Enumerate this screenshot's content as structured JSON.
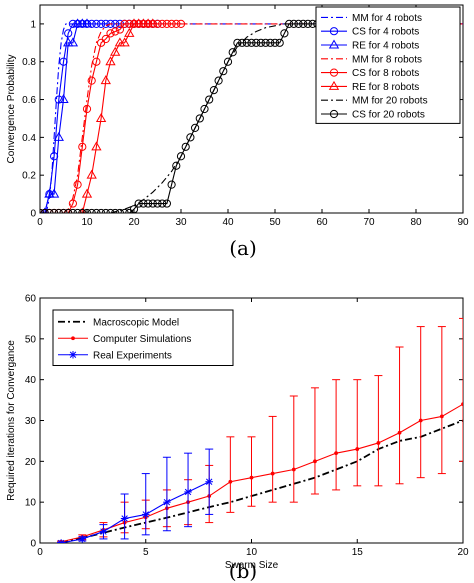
{
  "chart_data": [
    {
      "type": "line",
      "caption": "(a)",
      "xlabel": "",
      "ylabel": "Convergence Probability",
      "xlim": [
        0,
        90
      ],
      "ylim": [
        0,
        1.1
      ],
      "xticks": [
        0,
        10,
        20,
        30,
        40,
        50,
        60,
        70,
        80,
        90
      ],
      "yticks": [
        0,
        0.2,
        0.4,
        0.6,
        0.8,
        1
      ],
      "xtick_labels": [
        "0",
        "10",
        "20",
        "30",
        "40",
        "50",
        "60",
        "70",
        "80",
        "90"
      ],
      "ytick_labels": [
        "0",
        "0.2",
        "0.4",
        "0.6",
        "0.8",
        "1"
      ],
      "legend": "top-right",
      "series": [
        {
          "name": "MM for 4 robots",
          "color": "#0000ff",
          "dash": "dashdot",
          "marker": "none",
          "x": [
            1,
            1.5,
            2,
            2.5,
            3,
            3.5,
            4,
            4.5,
            5,
            5.5,
            6,
            7,
            8,
            90
          ],
          "y": [
            0,
            0.02,
            0.08,
            0.2,
            0.4,
            0.6,
            0.78,
            0.9,
            0.97,
            1,
            1,
            1,
            1,
            1
          ]
        },
        {
          "name": "CS for 4 robots",
          "color": "#0000ff",
          "dash": "solid",
          "marker": "circle",
          "x": [
            1,
            2,
            3,
            4,
            5,
            6,
            7,
            8,
            9,
            10,
            11,
            12,
            13,
            14,
            15,
            16,
            17,
            18,
            19,
            20,
            21,
            22,
            23,
            24,
            25
          ],
          "y": [
            0,
            0.1,
            0.3,
            0.6,
            0.8,
            0.95,
            1,
            1,
            1,
            1,
            1,
            1,
            1,
            1,
            1,
            1,
            1,
            1,
            1,
            1,
            1,
            1,
            1,
            1,
            1
          ]
        },
        {
          "name": "RE for 4 robots",
          "color": "#0000ff",
          "dash": "solid",
          "marker": "triangle",
          "x": [
            1,
            2,
            3,
            4,
            5,
            6,
            7,
            8,
            9,
            10
          ],
          "y": [
            0,
            0.1,
            0.1,
            0.4,
            0.6,
            0.9,
            0.9,
            1,
            1,
            1
          ]
        },
        {
          "name": "MM for 8 robots",
          "color": "#ff0000",
          "dash": "dashdot",
          "marker": "none",
          "x": [
            5,
            6,
            7,
            8,
            9,
            10,
            11,
            12,
            13,
            14,
            15,
            16,
            17,
            90
          ],
          "y": [
            0,
            0.02,
            0.08,
            0.2,
            0.4,
            0.6,
            0.78,
            0.9,
            0.96,
            0.99,
            1,
            1,
            1,
            1
          ]
        },
        {
          "name": "CS for 8 robots",
          "color": "#ff0000",
          "dash": "solid",
          "marker": "circle",
          "x": [
            0,
            1,
            2,
            3,
            4,
            5,
            6,
            7,
            8,
            9,
            10,
            11,
            12,
            13,
            14,
            15,
            16,
            17,
            18,
            19,
            20,
            21,
            22,
            23,
            24,
            25,
            26,
            27,
            28,
            29,
            30
          ],
          "y": [
            0,
            0,
            0,
            0,
            0,
            0,
            0,
            0.05,
            0.15,
            0.35,
            0.55,
            0.7,
            0.8,
            0.9,
            0.92,
            0.95,
            0.96,
            0.97,
            1,
            1,
            1,
            1,
            1,
            1,
            1,
            1,
            1,
            1,
            1,
            1,
            1
          ]
        },
        {
          "name": "RE for 8 robots",
          "color": "#ff0000",
          "dash": "solid",
          "marker": "triangle",
          "x": [
            9,
            10,
            11,
            12,
            13,
            14,
            15,
            16,
            17,
            18,
            19,
            20,
            21,
            22,
            23,
            24
          ],
          "y": [
            0,
            0.1,
            0.2,
            0.35,
            0.5,
            0.7,
            0.8,
            0.85,
            0.9,
            0.9,
            0.95,
            1,
            1,
            1,
            1,
            1
          ]
        },
        {
          "name": "MM for 20 robots",
          "color": "#000000",
          "dash": "dashdot",
          "marker": "none",
          "x": [
            15,
            18,
            20,
            22,
            24,
            26,
            28,
            30,
            32,
            34,
            36,
            38,
            40,
            42,
            44,
            46,
            48,
            50,
            52,
            55,
            60,
            90
          ],
          "y": [
            0,
            0.02,
            0.04,
            0.07,
            0.11,
            0.16,
            0.22,
            0.3,
            0.4,
            0.5,
            0.6,
            0.7,
            0.8,
            0.88,
            0.93,
            0.96,
            0.98,
            0.99,
            1,
            1,
            1,
            1
          ]
        },
        {
          "name": "CS for 20 robots",
          "color": "#000000",
          "dash": "solid",
          "marker": "circle",
          "x": [
            0,
            1,
            2,
            3,
            4,
            5,
            6,
            7,
            8,
            9,
            10,
            11,
            12,
            13,
            14,
            15,
            16,
            17,
            18,
            19,
            20,
            21,
            22,
            23,
            24,
            25,
            26,
            27,
            28,
            29,
            30,
            31,
            32,
            33,
            34,
            35,
            36,
            37,
            38,
            39,
            40,
            41,
            42,
            43,
            44,
            45,
            46,
            47,
            48,
            49,
            50,
            51,
            52,
            53,
            54,
            55,
            56,
            57,
            58,
            59,
            60
          ],
          "y": [
            0,
            0,
            0,
            0,
            0,
            0,
            0,
            0,
            0,
            0,
            0,
            0,
            0,
            0,
            0,
            0,
            0,
            0,
            0,
            0,
            0.02,
            0.05,
            0.05,
            0.05,
            0.05,
            0.05,
            0.05,
            0.05,
            0.15,
            0.25,
            0.3,
            0.35,
            0.4,
            0.45,
            0.5,
            0.55,
            0.6,
            0.65,
            0.7,
            0.75,
            0.8,
            0.85,
            0.9,
            0.9,
            0.9,
            0.9,
            0.9,
            0.9,
            0.9,
            0.9,
            0.9,
            0.9,
            0.95,
            1,
            1,
            1,
            1,
            1,
            1,
            1,
            1
          ]
        }
      ]
    },
    {
      "type": "line",
      "caption": "(b)",
      "xlabel": "Swarm Size",
      "ylabel": "Required iterations for Convergance",
      "xlim": [
        0,
        20
      ],
      "ylim": [
        0,
        60
      ],
      "xticks": [
        0,
        5,
        10,
        15,
        20
      ],
      "yticks": [
        0,
        10,
        20,
        30,
        40,
        50,
        60
      ],
      "xtick_labels": [
        "0",
        "5",
        "10",
        "15",
        "20"
      ],
      "ytick_labels": [
        "0",
        "10",
        "20",
        "30",
        "40",
        "50",
        "60"
      ],
      "legend": "top-left",
      "series": [
        {
          "name": "Macroscopic Model",
          "color": "#000000",
          "dash": "dashdot",
          "marker": "none",
          "x": [
            1,
            2,
            3,
            4,
            5,
            6,
            7,
            8,
            9,
            10,
            11,
            12,
            13,
            14,
            15,
            16,
            17,
            18,
            19,
            20
          ],
          "y": [
            0.2,
            1.2,
            2.5,
            3.8,
            5,
            6.2,
            7.5,
            8.8,
            10,
            11.5,
            13,
            14.5,
            16,
            18,
            20,
            23,
            25,
            26,
            28,
            30
          ]
        },
        {
          "name": "Computer Simulations",
          "color": "#ff0000",
          "dash": "solid",
          "marker": "dot",
          "x": [
            1,
            2,
            3,
            4,
            5,
            6,
            7,
            8,
            9,
            10,
            11,
            12,
            13,
            14,
            15,
            16,
            17,
            18,
            19,
            20
          ],
          "y": [
            0.3,
            1.5,
            3.2,
            5,
            6.3,
            8.5,
            10,
            11.5,
            15,
            16,
            17,
            18,
            20,
            22,
            23,
            24.5,
            27,
            30,
            31,
            34
          ],
          "err_low": [
            0.2,
            0.8,
            1.5,
            2.5,
            3.5,
            4,
            4.5,
            5,
            7.5,
            9,
            10,
            10,
            12,
            13,
            14,
            14,
            14.5,
            16,
            17,
            20
          ],
          "err_high": [
            0.5,
            2,
            5,
            10,
            10.5,
            13,
            15.5,
            19,
            26,
            26,
            31,
            36,
            38,
            40,
            40,
            41,
            48,
            53,
            53,
            55
          ]
        },
        {
          "name": "Real Experiments",
          "color": "#0000ff",
          "dash": "solid",
          "marker": "star",
          "x": [
            1,
            2,
            3,
            4,
            5,
            6,
            7,
            8
          ],
          "y": [
            0,
            1,
            2.8,
            6,
            7,
            10,
            12.5,
            15
          ],
          "err_low": [
            0,
            0.5,
            1,
            1,
            2,
            3,
            4,
            7
          ],
          "err_high": [
            0.2,
            1.5,
            4.5,
            12,
            17,
            21,
            22,
            23
          ]
        }
      ]
    }
  ]
}
